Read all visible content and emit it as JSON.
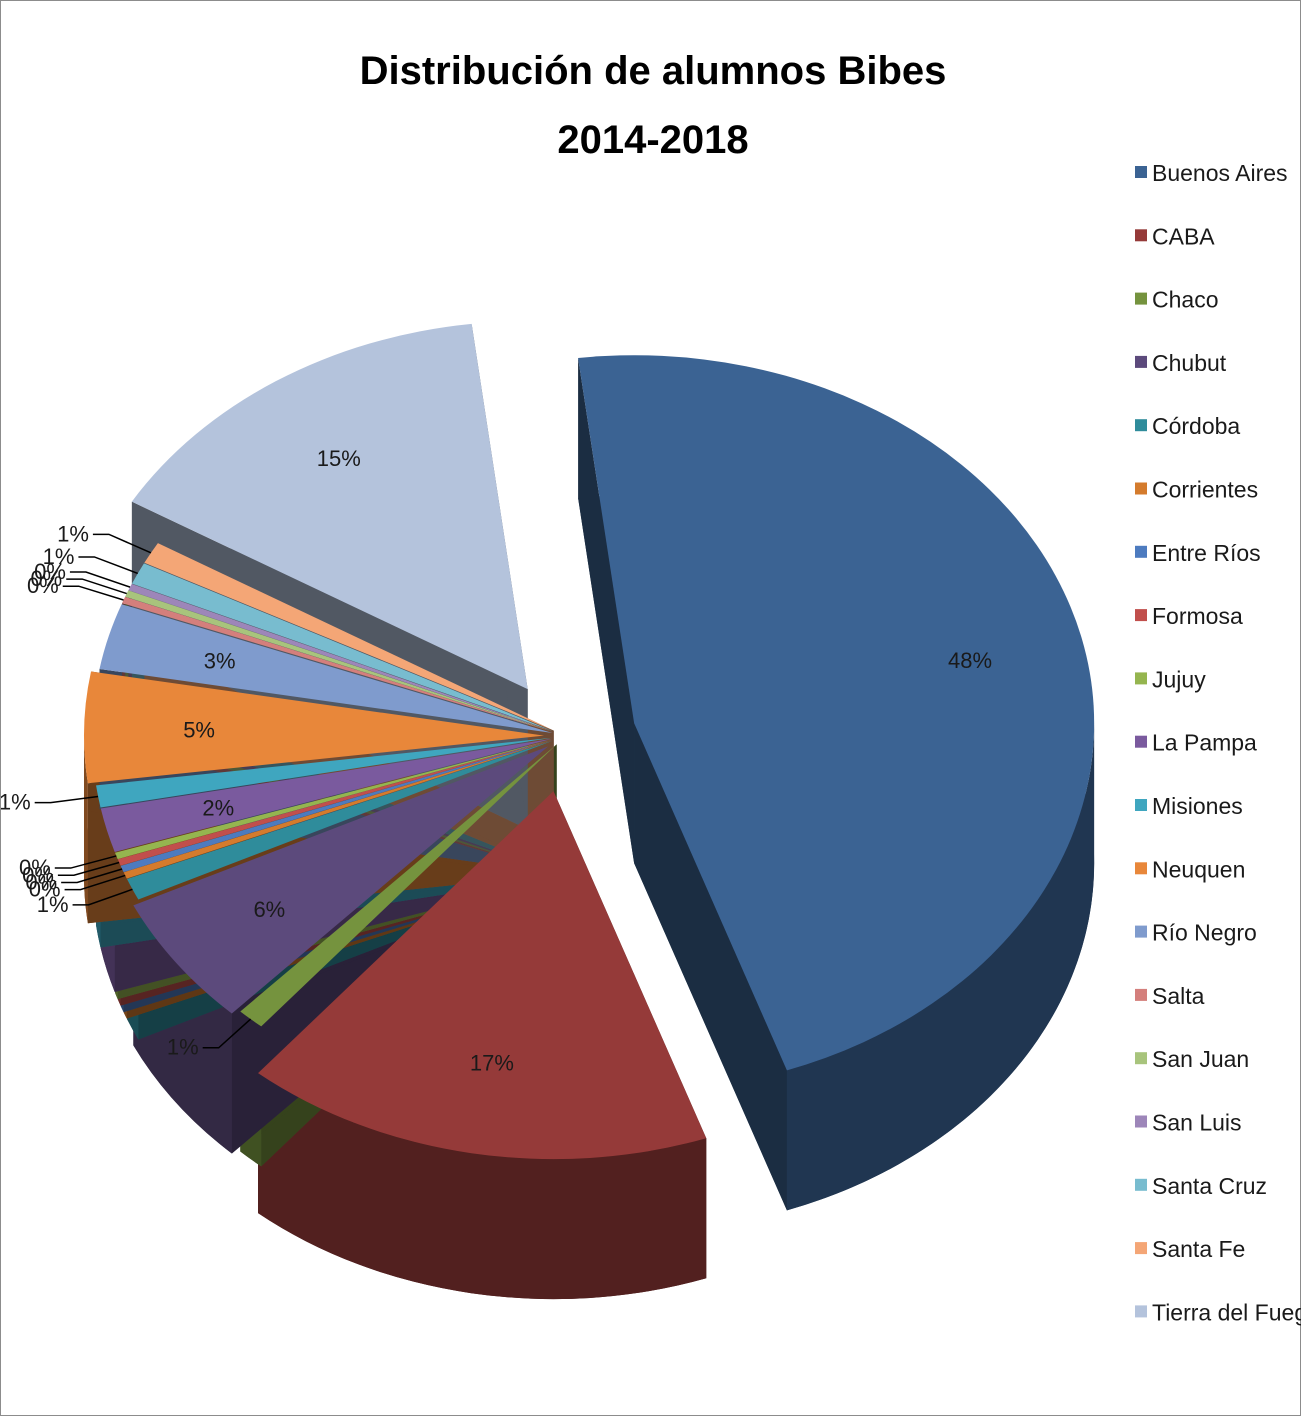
{
  "chart_data": {
    "type": "pie",
    "style": "3d-exploded",
    "title": "Distribución de alumnos Bibes",
    "subtitle": "2014-2018",
    "legend_position": "right",
    "categories": [
      "Buenos Aires",
      "CABA",
      "Chaco",
      "Chubut",
      "Córdoba",
      "Corrientes",
      "Entre Ríos",
      "Formosa",
      "Jujuy",
      "La Pampa",
      "Misiones",
      "Neuquen",
      "Río Negro",
      "Salta",
      "San Juan",
      "San Luis",
      "Santa Cruz",
      "Santa Fe",
      "Tierra del Fuego"
    ],
    "values": [
      48,
      17,
      1,
      6,
      1,
      0.3,
      0.3,
      0.3,
      0.3,
      2,
      1,
      5,
      3,
      0.3,
      0.3,
      0.3,
      1,
      1,
      15
    ],
    "labels": [
      "48%",
      "17%",
      "1%",
      "6%",
      "1%",
      "0%",
      "0%",
      "0%",
      "0%",
      "2%",
      "1%",
      "5%",
      "3%",
      "0%",
      "0%",
      "0%",
      "1%",
      "1%",
      "15%"
    ],
    "colors": [
      "#3b6393",
      "#953a39",
      "#75933e",
      "#5c4a7c",
      "#2f8c9b",
      "#d47b2d",
      "#4d7bbf",
      "#c14f4c",
      "#95b54f",
      "#7a5a9e",
      "#3fa6bf",
      "#e8873a",
      "#7f9bcd",
      "#d47f7c",
      "#a8c47c",
      "#9d86b9",
      "#78bccf",
      "#f4a676",
      "#b4c3dc"
    ]
  }
}
